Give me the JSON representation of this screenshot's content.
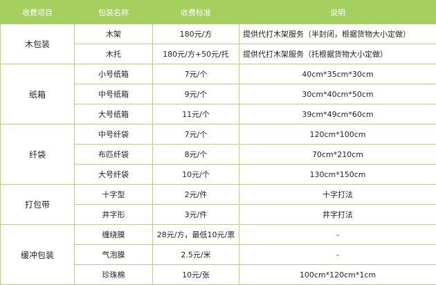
{
  "header": [
    "收费项目",
    "包装名称",
    "收费标准",
    "说明"
  ],
  "colors": {
    "header_bg": "#a5cf5f",
    "border": "#b4d27a"
  },
  "groups": [
    {
      "category": "木包装",
      "rows": [
        {
          "name": "木架",
          "price": "180元/方",
          "note": "提供代打木架服务（半封闭，根据货物大小定做）",
          "align": "left"
        },
        {
          "name": "木托",
          "price": "180元/方+50元/托",
          "note": "提供代打木架服务（托根据货物大小定做）",
          "align": "left"
        }
      ]
    },
    {
      "category": "纸箱",
      "rows": [
        {
          "name": "小号纸箱",
          "price": "7元/个",
          "note": "40cm*35cm*30cm"
        },
        {
          "name": "中号纸箱",
          "price": "9元/个",
          "note": "30cm*40cm*50cm"
        },
        {
          "name": "大号纸箱",
          "price": "11元/个",
          "note": "39cm*49cm*60cm"
        }
      ]
    },
    {
      "category": "纤袋",
      "rows": [
        {
          "name": "中号纤袋",
          "price": "7元/个",
          "note": "120cm*100cm"
        },
        {
          "name": "布匹纤袋",
          "price": "8元/个",
          "note": "70cm*210cm"
        },
        {
          "name": "大号纤袋",
          "price": "10元/个",
          "note": "130cm*150cm"
        }
      ]
    },
    {
      "category": "打包带",
      "rows": [
        {
          "name": "十字型",
          "price": "2元/件",
          "note": "十字打法"
        },
        {
          "name": "井字形",
          "price": "3元/件",
          "note": "井字打法"
        }
      ]
    },
    {
      "category": "缓冲包装",
      "rows": [
        {
          "name": "缠绕膜",
          "price": "28元/方，最低10元/票",
          "note": "-"
        },
        {
          "name": "气泡膜",
          "price": "2.5元/米",
          "note": "-"
        },
        {
          "name": "珍珠棉",
          "price": "10元/张",
          "note": "100cm*120cm*1cm"
        }
      ]
    }
  ]
}
